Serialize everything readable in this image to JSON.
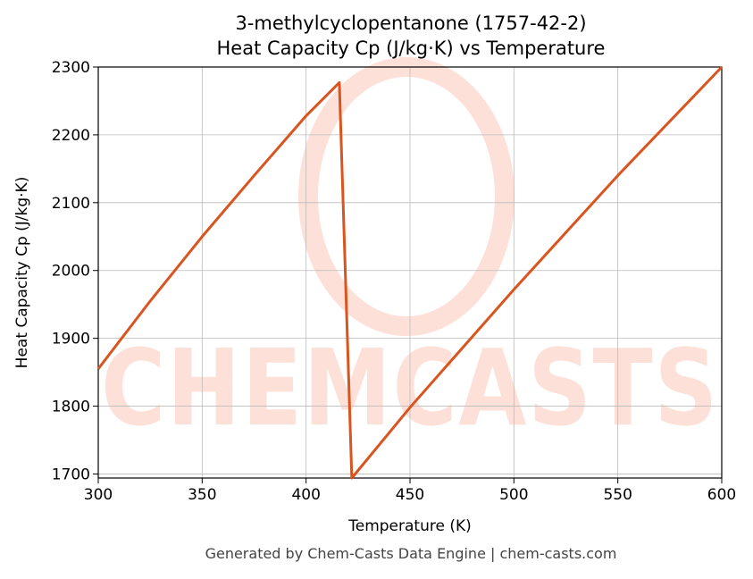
{
  "chart_data": {
    "type": "line",
    "title": "3-methylcyclopentanone (1757-42-2)",
    "subtitle": "Heat Capacity Cp (J/kg·K) vs Temperature",
    "x_label": "Temperature (K)",
    "y_label": "Heat Capacity Cp (J/kg·K)",
    "footer": "Generated by Chem-Casts Data Engine | chem-casts.com",
    "watermark": "CHEMCASTS",
    "x": [
      300,
      325,
      350,
      375,
      400,
      416,
      422,
      450,
      500,
      550,
      600
    ],
    "series": [
      {
        "name": "Cp",
        "color": "#d9541e",
        "values": [
          1855,
          1955,
          2050,
          2140,
          2228,
          2277,
          1694,
          1798,
          1972,
          2140,
          2300
        ]
      }
    ],
    "xlim": [
      300,
      600
    ],
    "xticks": [
      300,
      350,
      400,
      450,
      500,
      550,
      600
    ],
    "ylim": [
      1694,
      2300
    ],
    "yticks": [
      1700,
      1800,
      1900,
      2000,
      2100,
      2200,
      2300
    ],
    "grid": true
  }
}
